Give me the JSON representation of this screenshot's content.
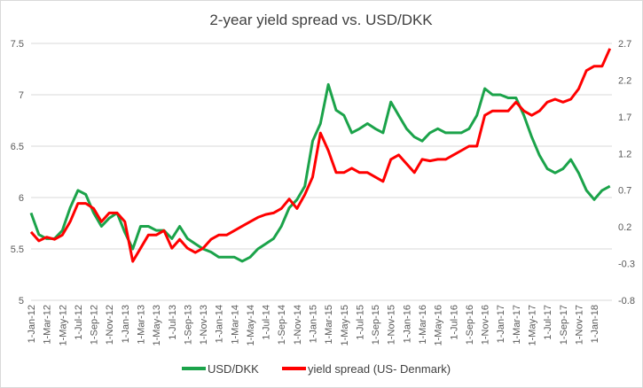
{
  "chart_data": {
    "type": "line",
    "title": "2-year yield spread vs. USD/DKK",
    "x_unit": "months since Jan 2012",
    "x_tick_labels": [
      "1-Jan-12",
      "1-Mar-12",
      "1-May-12",
      "1-Jul-12",
      "1-Sep-12",
      "1-Nov-12",
      "1-Jan-13",
      "1-Mar-13",
      "1-May-13",
      "1-Jul-13",
      "1-Sep-13",
      "1-Nov-13",
      "1-Jan-14",
      "1-Mar-14",
      "1-May-14",
      "1-Jul-14",
      "1-Sep-14",
      "1-Nov-14",
      "1-Jan-15",
      "1-Mar-15",
      "1-May-15",
      "1-Jul-15",
      "1-Sep-15",
      "1-Nov-15",
      "1-Jan-16",
      "1-Mar-16",
      "1-May-16",
      "1-Jul-16",
      "1-Sep-16",
      "1-Nov-16",
      "1-Jan-17",
      "1-Mar-17",
      "1-May-17",
      "1-Jul-17",
      "1-Sep-17",
      "1-Nov-17",
      "1-Jan-18"
    ],
    "y_left": {
      "min": 5,
      "max": 7.5,
      "ticks": [
        "5",
        "5.5",
        "6",
        "6.5",
        "7",
        "7.5"
      ]
    },
    "y_right": {
      "min": -0.8,
      "max": 2.7,
      "ticks": [
        "-0.8",
        "-0.3",
        "0.2",
        "0.7",
        "1.2",
        "1.7",
        "2.2",
        "2.7"
      ]
    },
    "grid": true,
    "legend_position": "bottom",
    "series": [
      {
        "name": "USD/DKK",
        "axis": "left",
        "color": "#1ba34a",
        "values": [
          5.85,
          5.64,
          5.6,
          5.6,
          5.68,
          5.9,
          6.07,
          6.03,
          5.85,
          5.72,
          5.8,
          5.85,
          5.66,
          5.5,
          5.72,
          5.72,
          5.68,
          5.68,
          5.6,
          5.72,
          5.6,
          5.55,
          5.5,
          5.47,
          5.42,
          5.42,
          5.42,
          5.38,
          5.42,
          5.5,
          5.55,
          5.6,
          5.72,
          5.9,
          5.98,
          6.11,
          6.55,
          6.72,
          7.1,
          6.85,
          6.8,
          6.63,
          6.67,
          6.72,
          6.67,
          6.63,
          6.93,
          6.8,
          6.67,
          6.59,
          6.55,
          6.63,
          6.67,
          6.63,
          6.63,
          6.63,
          6.67,
          6.8,
          7.06,
          7.0,
          7.0,
          6.97,
          6.97,
          6.8,
          6.59,
          6.41,
          6.28,
          6.24,
          6.28,
          6.37,
          6.24,
          6.07,
          5.98,
          6.07,
          6.11
        ]
      },
      {
        "name": "yield spread (US- Denmark)",
        "axis": "right",
        "color": "#ff0000",
        "values": [
          0.13,
          0.01,
          0.06,
          0.03,
          0.09,
          0.27,
          0.52,
          0.52,
          0.45,
          0.27,
          0.39,
          0.39,
          0.27,
          -0.27,
          -0.09,
          0.09,
          0.09,
          0.15,
          -0.09,
          0.03,
          -0.09,
          -0.15,
          -0.09,
          0.03,
          0.09,
          0.09,
          0.15,
          0.21,
          0.27,
          0.33,
          0.37,
          0.39,
          0.45,
          0.58,
          0.45,
          0.64,
          0.88,
          1.48,
          1.24,
          0.94,
          0.94,
          1.0,
          0.94,
          0.94,
          0.88,
          0.82,
          1.12,
          1.18,
          1.06,
          0.94,
          1.12,
          1.1,
          1.12,
          1.12,
          1.18,
          1.24,
          1.3,
          1.3,
          1.72,
          1.78,
          1.78,
          1.78,
          1.9,
          1.78,
          1.72,
          1.78,
          1.9,
          1.94,
          1.9,
          1.94,
          2.08,
          2.33,
          2.39,
          2.39,
          2.63
        ]
      }
    ]
  }
}
